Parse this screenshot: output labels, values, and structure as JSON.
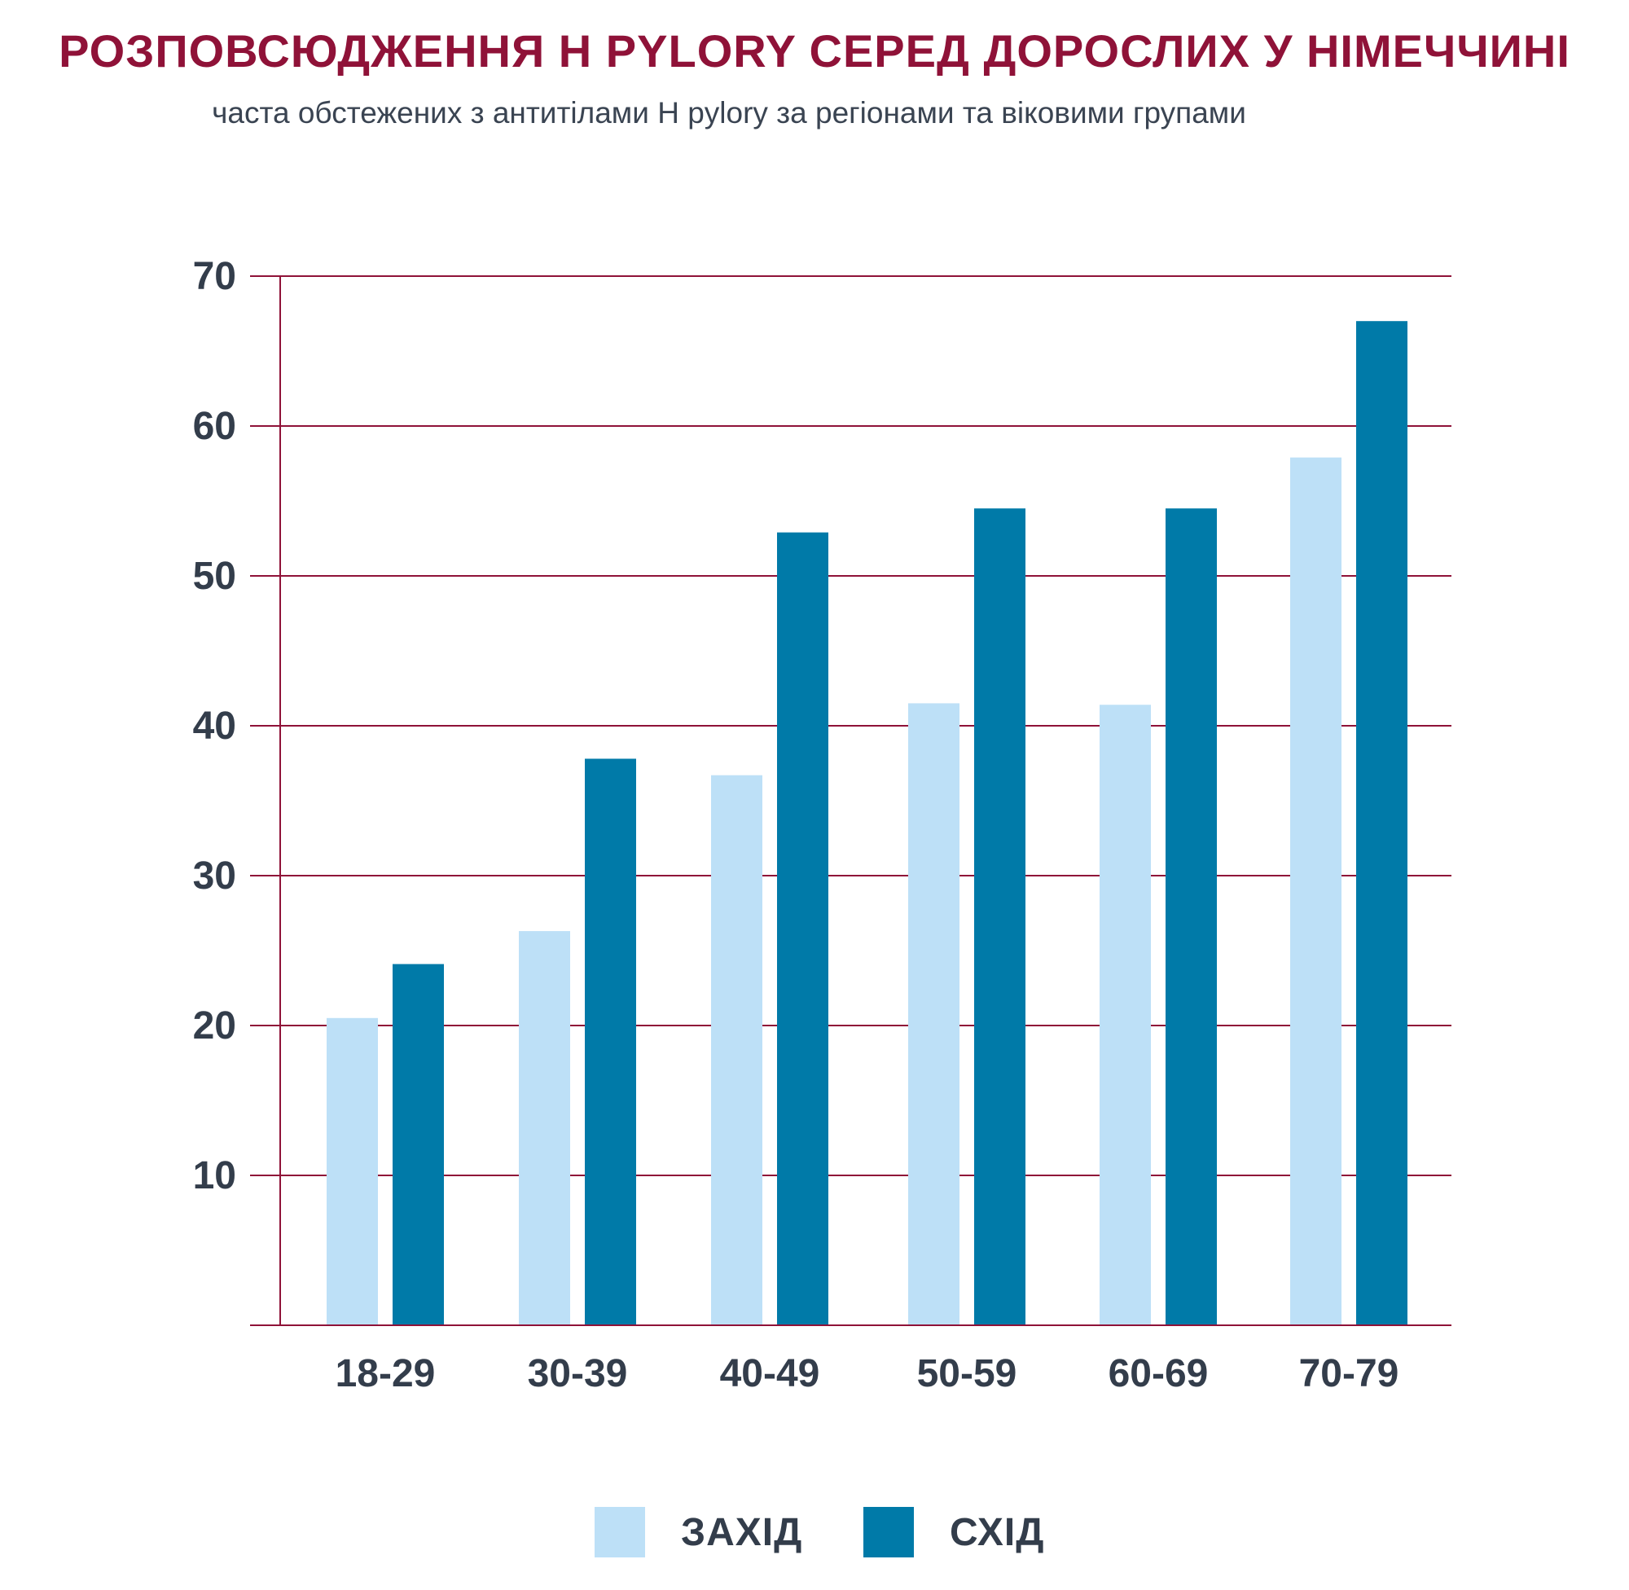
{
  "title": "РОЗПОВСЮДЖЕННЯ H PYLORY СЕРЕД ДОРОСЛИХ У НІМЕЧЧИНІ",
  "subtitle": "часта обстежених з антитілами H pylory за регіонами та віковими групами",
  "colors": {
    "title": "#8f1238",
    "grid": "#8f1238",
    "text": "#333d4b",
    "west": "#bde0f7",
    "east": "#007aa8"
  },
  "chart_data": {
    "type": "bar",
    "title": "РОЗПОВСЮДЖЕННЯ H PYLORY СЕРЕД ДОРОСЛИХ У НІМЕЧЧИНІ",
    "subtitle": "часта обстежених з антитілами H pylory за регіонами та віковими групами",
    "xlabel": "",
    "ylabel": "",
    "categories": [
      "18-29",
      "30-39",
      "40-49",
      "50-59",
      "60-69",
      "70-79"
    ],
    "series": [
      {
        "name": "ЗАХІД",
        "values": [
          20.5,
          26.3,
          36.7,
          41.5,
          41.4,
          57.9
        ]
      },
      {
        "name": "СХІД",
        "values": [
          24.1,
          37.8,
          52.9,
          54.5,
          54.5,
          67.0
        ]
      }
    ],
    "ylim": [
      0,
      70
    ],
    "yticks": [
      10,
      20,
      30,
      40,
      50,
      60,
      70
    ],
    "grid": true,
    "legend_position": "bottom"
  },
  "legend": {
    "west_label": "ЗАХІД",
    "east_label": "СХІД"
  }
}
